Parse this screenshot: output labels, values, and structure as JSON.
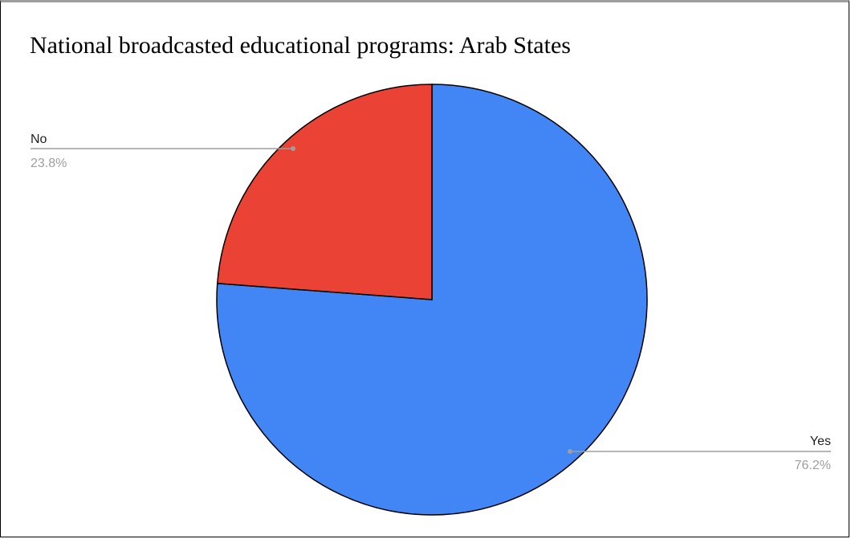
{
  "chart_data": {
    "type": "pie",
    "title": "National broadcasted educational programs: Arab States",
    "slices": [
      {
        "label": "Yes",
        "value": 76.2,
        "display": "76.2%",
        "color": "#4285f4"
      },
      {
        "label": "No",
        "value": 23.8,
        "display": "23.8%",
        "color": "#ea4335"
      }
    ],
    "start_angle": "12 o'clock",
    "direction": "clockwise",
    "legend": "none",
    "label_style": "leader lines with name and percent",
    "leader_color": "#9e9e9e"
  }
}
